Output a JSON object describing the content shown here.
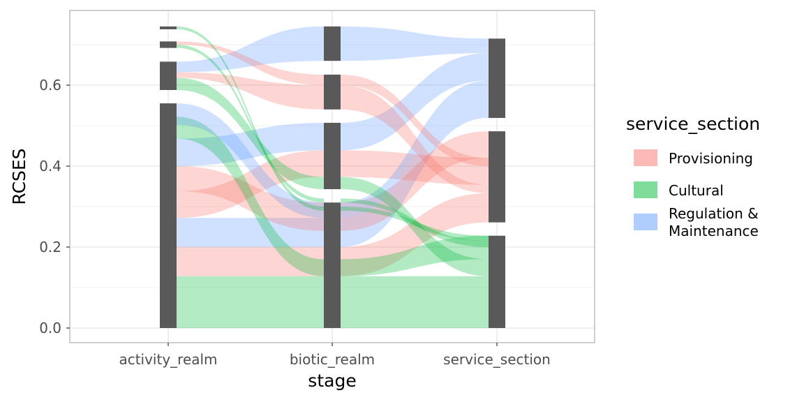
{
  "chart_data": {
    "type": "alluvial",
    "xlabel": "stage",
    "ylabel": "RCSES",
    "stages": [
      "activity_realm",
      "biotic_realm",
      "service_section"
    ],
    "ylim": [
      0,
      0.78
    ],
    "yticks": [
      0.0,
      0.2,
      0.4,
      0.6
    ],
    "ytick_labels": [
      "0.0",
      "0.2",
      "0.4",
      "0.6"
    ],
    "grid": true,
    "legend": {
      "title": "service_section",
      "position": "right",
      "items": [
        {
          "label_lines": [
            "Provisioning"
          ],
          "color": "#f8766d"
        },
        {
          "label_lines": [
            "Cultural"
          ],
          "color": "#00ba38"
        },
        {
          "label_lines": [
            "Regulation &",
            "Maintenance"
          ],
          "color": "#619cff"
        }
      ]
    },
    "colors": {
      "Provisioning": "#f8766d",
      "Cultural": "#00ba38",
      "Regulation & Maintenance": "#619cff",
      "stratum": "#595959"
    },
    "strata": [
      [
        [
          0.0,
          0.555
        ],
        [
          0.588,
          0.658
        ],
        [
          0.692,
          0.708
        ],
        [
          0.738,
          0.745
        ]
      ],
      [
        [
          0.0,
          0.31
        ],
        [
          0.343,
          0.507
        ],
        [
          0.54,
          0.626
        ],
        [
          0.66,
          0.745
        ]
      ],
      [
        [
          0.0,
          0.228
        ],
        [
          0.261,
          0.486
        ],
        [
          0.519,
          0.715
        ]
      ]
    ],
    "flows": [
      {
        "section": "Cultural",
        "y": [
          [
            0.0,
            0.128
          ],
          [
            0.0,
            0.128
          ],
          [
            0.0,
            0.128
          ]
        ]
      },
      {
        "section": "Provisioning",
        "y": [
          [
            0.128,
            0.2
          ],
          [
            0.128,
            0.2
          ],
          [
            0.261,
            0.333
          ]
        ]
      },
      {
        "section": "Regulation & Maintenance",
        "y": [
          [
            0.2,
            0.272
          ],
          [
            0.2,
            0.272
          ],
          [
            0.519,
            0.591
          ]
        ]
      },
      {
        "section": "Provisioning",
        "y": [
          [
            0.272,
            0.338
          ],
          [
            0.373,
            0.439
          ],
          [
            0.354,
            0.42
          ]
        ]
      },
      {
        "section": "Provisioning",
        "y": [
          [
            0.338,
            0.4
          ],
          [
            0.24,
            0.31
          ],
          [
            0.42,
            0.486
          ]
        ]
      },
      {
        "section": "Regulation & Maintenance",
        "y": [
          [
            0.4,
            0.468
          ],
          [
            0.439,
            0.507
          ],
          [
            0.611,
            0.679
          ]
        ]
      },
      {
        "section": "Cultural",
        "y": [
          [
            0.468,
            0.522
          ],
          [
            0.128,
            0.17
          ],
          [
            0.17,
            0.228
          ]
        ]
      },
      {
        "section": "Regulation & Maintenance",
        "y": [
          [
            0.502,
            0.555
          ],
          [
            0.272,
            0.31
          ],
          [
            0.591,
            0.611
          ]
        ]
      },
      {
        "section": "Cultural",
        "y": [
          [
            0.588,
            0.618
          ],
          [
            0.343,
            0.373
          ],
          [
            0.128,
            0.17
          ]
        ]
      },
      {
        "section": "Provisioning",
        "y": [
          [
            0.618,
            0.632
          ],
          [
            0.54,
            0.6
          ],
          [
            0.333,
            0.354
          ]
        ]
      },
      {
        "section": "Regulation & Maintenance",
        "y": [
          [
            0.632,
            0.658
          ],
          [
            0.66,
            0.745
          ],
          [
            0.679,
            0.715
          ]
        ]
      },
      {
        "section": "Cultural",
        "y": [
          [
            0.692,
            0.7
          ],
          [
            0.31,
            0.32
          ],
          [
            0.2,
            0.215
          ]
        ]
      },
      {
        "section": "Provisioning",
        "y": [
          [
            0.7,
            0.708
          ],
          [
            0.6,
            0.626
          ],
          [
            0.4,
            0.42
          ]
        ]
      },
      {
        "section": "Cultural",
        "y": [
          [
            0.738,
            0.745
          ],
          [
            0.29,
            0.3
          ],
          [
            0.215,
            0.228
          ]
        ]
      }
    ]
  }
}
